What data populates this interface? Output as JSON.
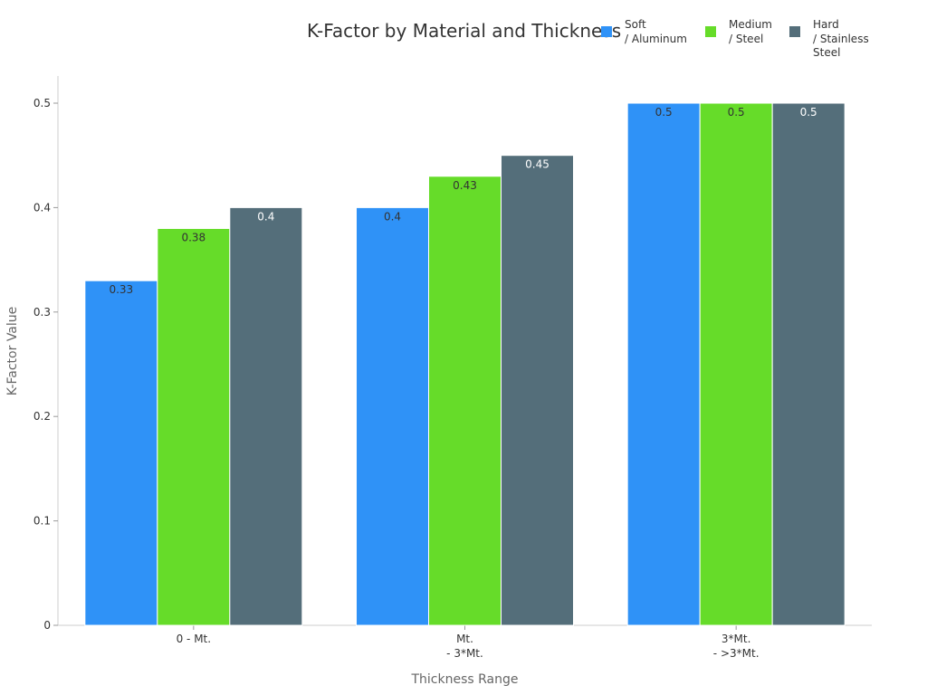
{
  "chart_data": {
    "type": "bar",
    "title": "K-Factor by Material and Thickness",
    "xlabel": "Thickness Range",
    "ylabel": "K-Factor Value",
    "categories": [
      [
        "0 - Mt."
      ],
      [
        "Mt.",
        "- 3*Mt."
      ],
      [
        "3*Mt.",
        "- >3*Mt."
      ]
    ],
    "ylim": [
      0,
      0.5
    ],
    "yticks": [
      "0",
      "0.1",
      "0.2",
      "0.3",
      "0.4",
      "0.5"
    ],
    "grid": false,
    "legend_position": "top-right",
    "series": [
      {
        "name": [
          "Soft",
          "/ Aluminum"
        ],
        "color": "#2f92f7",
        "label_color": "#333333",
        "values": [
          0.33,
          0.4,
          0.5
        ],
        "labels": [
          "0.33",
          "0.4",
          "0.5"
        ]
      },
      {
        "name": [
          "Medium",
          "/ Steel"
        ],
        "color": "#66dc29",
        "label_color": "#333333",
        "values": [
          0.38,
          0.43,
          0.5
        ],
        "labels": [
          "0.38",
          "0.43",
          "0.5"
        ]
      },
      {
        "name": [
          "Hard",
          "/ Stainless",
          "Steel"
        ],
        "color": "#546e7a",
        "label_color": "#ffffff",
        "values": [
          0.4,
          0.45,
          0.5
        ],
        "labels": [
          "0.4",
          "0.45",
          "0.5"
        ]
      }
    ]
  }
}
